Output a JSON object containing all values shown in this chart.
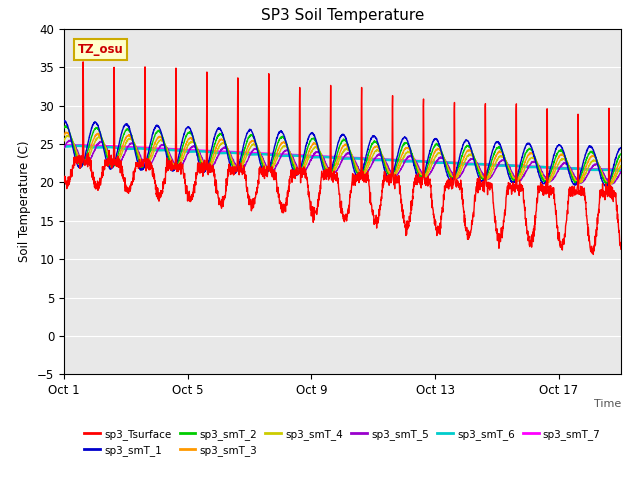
{
  "title": "SP3 Soil Temperature",
  "xlabel": "Time",
  "ylabel": "Soil Temperature (C)",
  "ylim": [
    -5,
    40
  ],
  "xlim": [
    0,
    18
  ],
  "xtick_positions": [
    0,
    4,
    8,
    12,
    16
  ],
  "xtick_labels": [
    "Oct 1",
    "Oct 5",
    "Oct 9",
    "Oct 13",
    "Oct 17"
  ],
  "ytick_positions": [
    -5,
    0,
    5,
    10,
    15,
    20,
    25,
    30,
    35,
    40
  ],
  "annotation_text": "TZ_osu",
  "background_color": "#ffffff",
  "plot_bg_color": "#e8e8e8",
  "series_colors": {
    "sp3_Tsurface": "#ff0000",
    "sp3_smT_1": "#0000cc",
    "sp3_smT_2": "#00cc00",
    "sp3_smT_3": "#ff9900",
    "sp3_smT_4": "#cccc00",
    "sp3_smT_5": "#9900cc",
    "sp3_smT_6": "#00cccc",
    "sp3_smT_7": "#ff00ff"
  }
}
